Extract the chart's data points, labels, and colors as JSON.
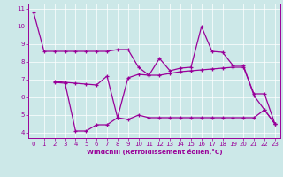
{
  "xlabel": "Windchill (Refroidissement éolien,°C)",
  "bg_color": "#cce8e8",
  "line_color": "#990099",
  "xlim": [
    -0.5,
    23.5
  ],
  "ylim": [
    3.7,
    11.3
  ],
  "yticks": [
    4,
    5,
    6,
    7,
    8,
    9,
    10,
    11
  ],
  "xticks": [
    0,
    1,
    2,
    3,
    4,
    5,
    6,
    7,
    8,
    9,
    10,
    11,
    12,
    13,
    14,
    15,
    16,
    17,
    18,
    19,
    20,
    21,
    22,
    23
  ],
  "line1_x": [
    0,
    1,
    2,
    3,
    4,
    5,
    6,
    7,
    8,
    9,
    10,
    11,
    12,
    13,
    14,
    15,
    16,
    17,
    18,
    19,
    20,
    21,
    22,
    23
  ],
  "line1_y": [
    10.8,
    8.6,
    8.6,
    8.6,
    8.6,
    8.6,
    8.6,
    8.6,
    8.7,
    8.7,
    7.7,
    7.25,
    8.2,
    7.5,
    7.65,
    7.7,
    10.0,
    8.6,
    8.55,
    7.8,
    7.8,
    6.1,
    5.3,
    4.5
  ],
  "line2_x": [
    2,
    3,
    4,
    5,
    6,
    7,
    8,
    9,
    10,
    11,
    12,
    13,
    14,
    15,
    16,
    17,
    18,
    19,
    20,
    21,
    22,
    23
  ],
  "line2_y": [
    6.9,
    6.85,
    6.8,
    6.75,
    6.7,
    7.2,
    4.85,
    7.1,
    7.3,
    7.25,
    7.25,
    7.35,
    7.45,
    7.5,
    7.55,
    7.6,
    7.65,
    7.7,
    7.7,
    6.2,
    6.2,
    4.5
  ],
  "line3_x": [
    2,
    3,
    4,
    5,
    6,
    7,
    8,
    9,
    10,
    11,
    12,
    13,
    14,
    15,
    16,
    17,
    18,
    19,
    20,
    21,
    22,
    23
  ],
  "line3_y": [
    6.85,
    6.8,
    4.1,
    4.1,
    4.45,
    4.45,
    4.85,
    4.75,
    5.0,
    4.85,
    4.85,
    4.85,
    4.85,
    4.85,
    4.85,
    4.85,
    4.85,
    4.85,
    4.85,
    4.85,
    5.3,
    4.5
  ]
}
